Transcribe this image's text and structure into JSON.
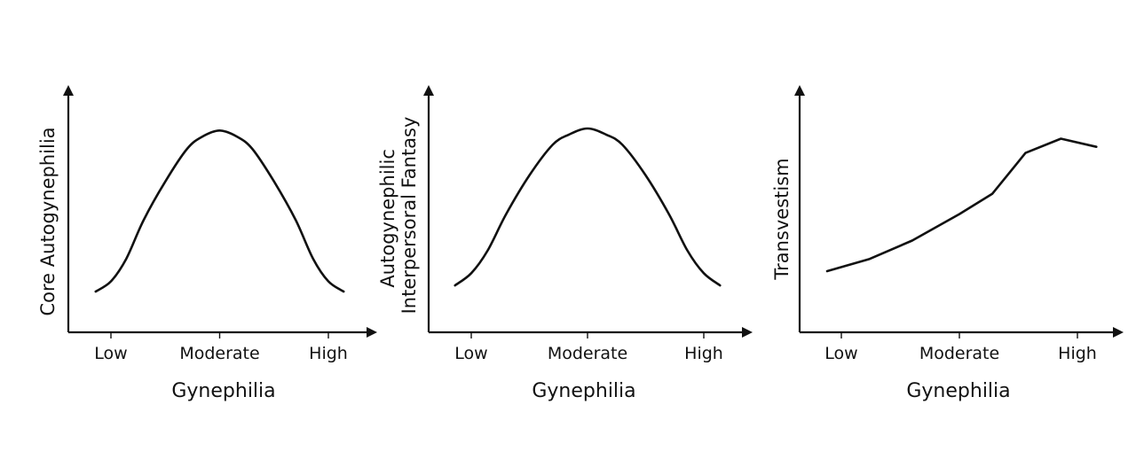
{
  "chart_data": [
    {
      "type": "line",
      "xlabel": "Gynephilia",
      "ylabel": [
        "Core Autogynephilia"
      ],
      "categories": [
        "Low",
        "Moderate",
        "High"
      ],
      "category_positions": [
        0,
        0.5,
        1
      ],
      "xlim": [
        -0.07,
        1.07
      ],
      "ylim": [
        0,
        1
      ],
      "grid": false,
      "series": [
        {
          "x": [
            -0.07,
            0.0,
            0.07,
            0.15,
            0.25,
            0.35,
            0.42,
            0.5,
            0.58,
            0.65,
            0.75,
            0.85,
            0.93,
            1.0,
            1.07
          ],
          "y": [
            0.2,
            0.25,
            0.36,
            0.55,
            0.74,
            0.9,
            0.96,
            0.99,
            0.96,
            0.9,
            0.74,
            0.55,
            0.36,
            0.25,
            0.2
          ]
        }
      ]
    },
    {
      "type": "line",
      "xlabel": "Gynephilia",
      "ylabel": [
        "Autogynephilic",
        "Interpersoral Fantasy"
      ],
      "categories": [
        "Low",
        "Moderate",
        "High"
      ],
      "category_positions": [
        0,
        0.5,
        1
      ],
      "xlim": [
        -0.07,
        1.07
      ],
      "ylim": [
        0,
        1
      ],
      "grid": false,
      "series": [
        {
          "x": [
            -0.07,
            0.0,
            0.07,
            0.15,
            0.25,
            0.35,
            0.42,
            0.5,
            0.58,
            0.65,
            0.75,
            0.85,
            0.93,
            1.0,
            1.07
          ],
          "y": [
            0.23,
            0.29,
            0.4,
            0.58,
            0.77,
            0.92,
            0.97,
            1.0,
            0.97,
            0.92,
            0.77,
            0.58,
            0.4,
            0.29,
            0.23
          ]
        }
      ]
    },
    {
      "type": "line",
      "xlabel": "Gynephilia",
      "ylabel": [
        "Transvestism"
      ],
      "categories": [
        "Low",
        "Moderate",
        "High"
      ],
      "category_positions": [
        0,
        0.5,
        1
      ],
      "xlim": [
        -0.06,
        1.08
      ],
      "ylim": [
        0,
        1
      ],
      "grid": false,
      "series": [
        {
          "x": [
            -0.06,
            0.12,
            0.3,
            0.5,
            0.64,
            0.78,
            0.93,
            1.08
          ],
          "y": [
            0.3,
            0.36,
            0.45,
            0.58,
            0.68,
            0.88,
            0.95,
            0.91
          ]
        }
      ]
    }
  ]
}
